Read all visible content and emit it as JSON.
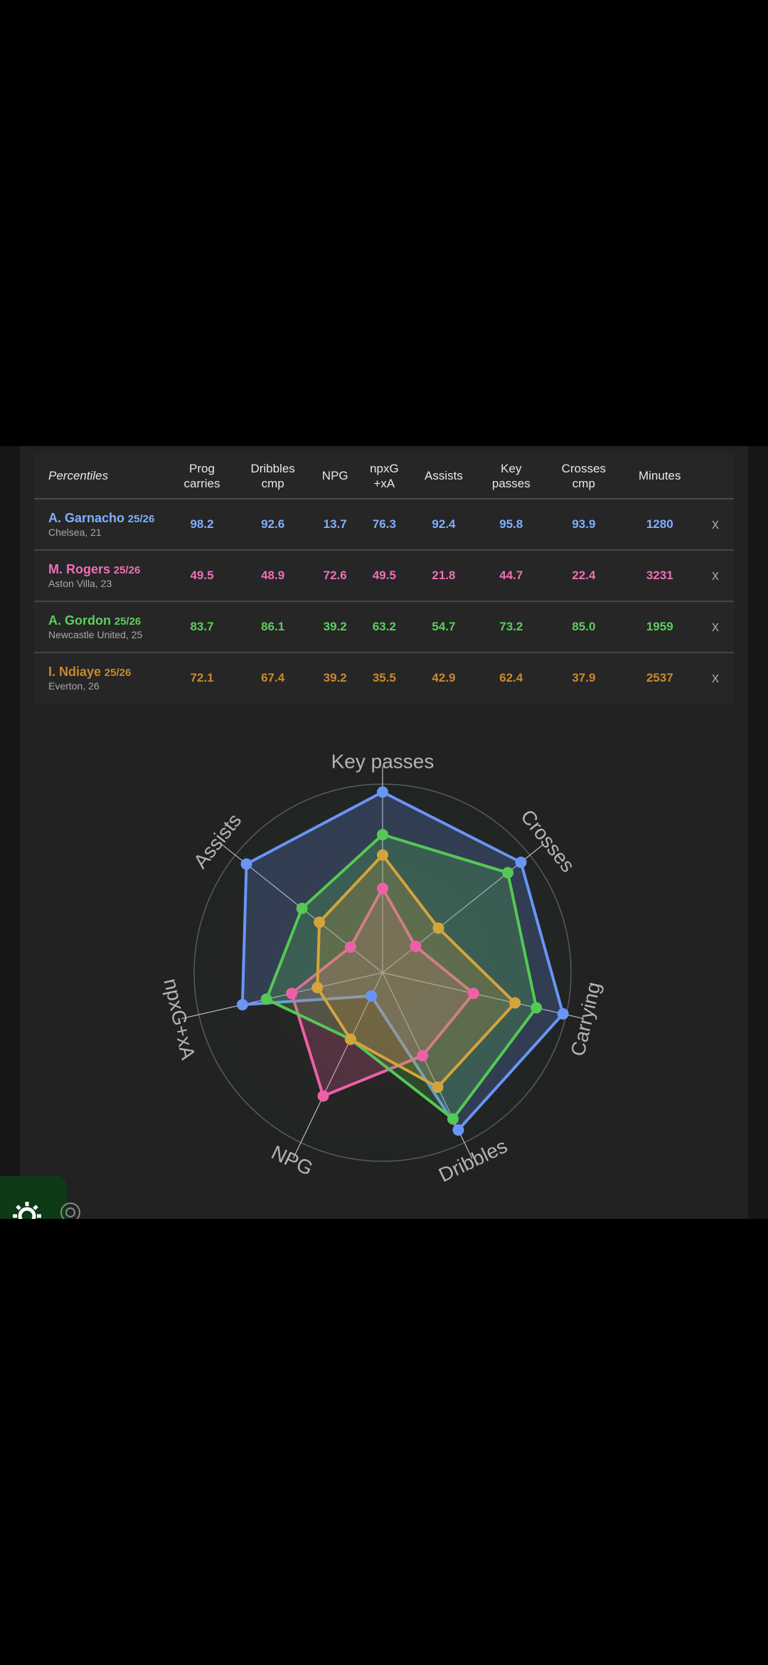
{
  "table": {
    "header": [
      "Percentiles",
      "Prog\ncarries",
      "Dribbles\ncmp",
      "NPG",
      "npxG\n+xA",
      "Assists",
      "Key\npasses",
      "Crosses\ncmp",
      "Minutes"
    ],
    "remove_label": "x",
    "rows": [
      {
        "name": "A. Garnacho",
        "season": "25/26",
        "team": "Chelsea, 21",
        "color": "#7fb0ff",
        "values": [
          "98.2",
          "92.6",
          "13.7",
          "76.3",
          "92.4",
          "95.8",
          "93.9",
          "1280"
        ]
      },
      {
        "name": "M. Rogers",
        "season": "25/26",
        "team": "Aston Villa, 23",
        "color": "#ef6fb8",
        "values": [
          "49.5",
          "48.9",
          "72.6",
          "49.5",
          "21.8",
          "44.7",
          "22.4",
          "3231"
        ]
      },
      {
        "name": "A. Gordon",
        "season": "25/26",
        "team": "Newcastle United, 25",
        "color": "#5ccf5c",
        "values": [
          "83.7",
          "86.1",
          "39.2",
          "63.2",
          "54.7",
          "73.2",
          "85.0",
          "1959"
        ]
      },
      {
        "name": "I. Ndiaye",
        "season": "25/26",
        "team": "Everton, 26",
        "color": "#c9892e",
        "values": [
          "72.1",
          "67.4",
          "39.2",
          "35.5",
          "42.9",
          "62.4",
          "37.9",
          "2537"
        ]
      }
    ]
  },
  "chart_data": {
    "type": "radar",
    "axes": [
      "Key passes",
      "Crosses",
      "Carrying",
      "Dribbles",
      "NPG",
      "npxG+xA",
      "Assists"
    ],
    "range": [
      0,
      100
    ],
    "series": [
      {
        "name": "A. Garnacho",
        "color": "#6a95f5",
        "values": [
          95.8,
          93.9,
          98.2,
          92.6,
          13.7,
          76.3,
          92.4
        ]
      },
      {
        "name": "M. Rogers",
        "color": "#ef5fa8",
        "values": [
          44.7,
          22.4,
          49.5,
          48.9,
          72.6,
          49.5,
          21.8
        ]
      },
      {
        "name": "A. Gordon",
        "color": "#55c855",
        "values": [
          73.2,
          85.0,
          83.7,
          86.1,
          39.2,
          63.2,
          54.7
        ]
      },
      {
        "name": "I. Ndiaye",
        "color": "#d4a43c",
        "values": [
          62.4,
          37.9,
          72.1,
          67.4,
          39.2,
          35.5,
          42.9
        ]
      }
    ]
  }
}
